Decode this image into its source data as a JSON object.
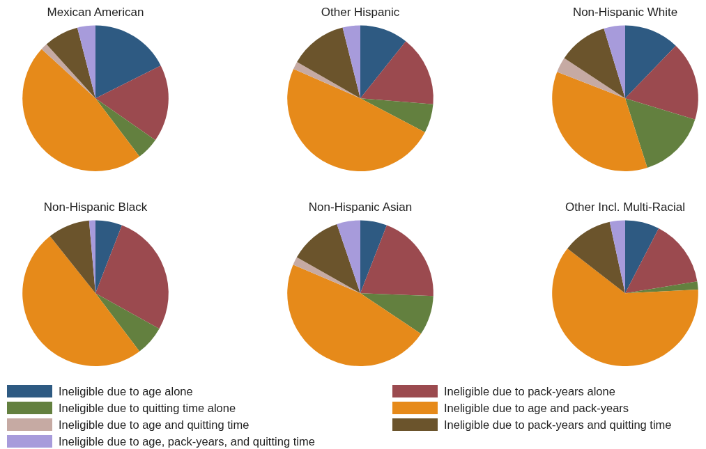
{
  "chart_data": [
    {
      "type": "pie",
      "title": "Mexican American",
      "categories": [
        "Ineligible due to age alone",
        "Ineligible due to pack-years alone",
        "Ineligible due to quitting time alone",
        "Ineligible due to age and pack-years",
        "Ineligible due to age and quitting time",
        "Ineligible due to pack-years and quitting time",
        "Ineligible due to age, pack-years, and quitting time"
      ],
      "values": [
        17.6,
        17.1,
        5,
        47.1,
        1.5,
        7.7,
        4
      ],
      "colors": [
        "#2e5a82",
        "#9b4a4f",
        "#63803f",
        "#e68a1a",
        "#c6aaa3",
        "#6b542c",
        "#a79bdb"
      ],
      "legend": "bottom"
    },
    {
      "type": "pie",
      "title": "Other Hispanic",
      "categories": [
        null,
        null,
        null,
        null,
        null,
        null,
        null
      ],
      "values": [
        10.7,
        15.6,
        6.4,
        48.9,
        1.7,
        12.8,
        3.9
      ],
      "colors": [
        "#2e5a82",
        "#9b4a4f",
        "#63803f",
        "#e68a1a",
        "#c6aaa3",
        "#6b542c",
        "#a79bdb"
      ]
    },
    {
      "type": "pie",
      "title": "Non-Hispanic White",
      "categories": [
        null,
        null,
        null,
        null,
        null,
        null,
        null
      ],
      "values": [
        12.2,
        17.5,
        15.4,
        35.8,
        3.4,
        11,
        4.7
      ],
      "colors": [
        "#2e5a82",
        "#9b4a4f",
        "#63803f",
        "#e68a1a",
        "#c6aaa3",
        "#6b542c",
        "#a79bdb"
      ]
    },
    {
      "type": "pie",
      "title": "Non-Hispanic Black",
      "categories": [
        null,
        null,
        null,
        null,
        null,
        null,
        null
      ],
      "values": [
        5.9,
        27.2,
        6.6,
        49.6,
        0,
        9.3,
        1.4
      ],
      "colors": [
        "#2e5a82",
        "#9b4a4f",
        "#63803f",
        "#e68a1a",
        "#c6aaa3",
        "#6b542c",
        "#a79bdb"
      ]
    },
    {
      "type": "pie",
      "title": "Non-Hispanic Asian",
      "categories": [
        null,
        null,
        null,
        null,
        null,
        null,
        null
      ],
      "values": [
        5.9,
        19.7,
        8.8,
        47,
        1.8,
        11.6,
        5.2
      ],
      "colors": [
        "#2e5a82",
        "#9b4a4f",
        "#63803f",
        "#e68a1a",
        "#c6aaa3",
        "#6b542c",
        "#a79bdb"
      ]
    },
    {
      "type": "pie",
      "title": "Other Incl. Multi-Racial",
      "categories": [
        null,
        null,
        null,
        null,
        null,
        null,
        null
      ],
      "values": [
        7.6,
        14.8,
        1.8,
        61.3,
        0,
        11.1,
        3.4
      ],
      "colors": [
        "#2e5a82",
        "#9b4a4f",
        "#63803f",
        "#e68a1a",
        "#c6aaa3",
        "#6b542c",
        "#a79bdb"
      ]
    }
  ]
}
